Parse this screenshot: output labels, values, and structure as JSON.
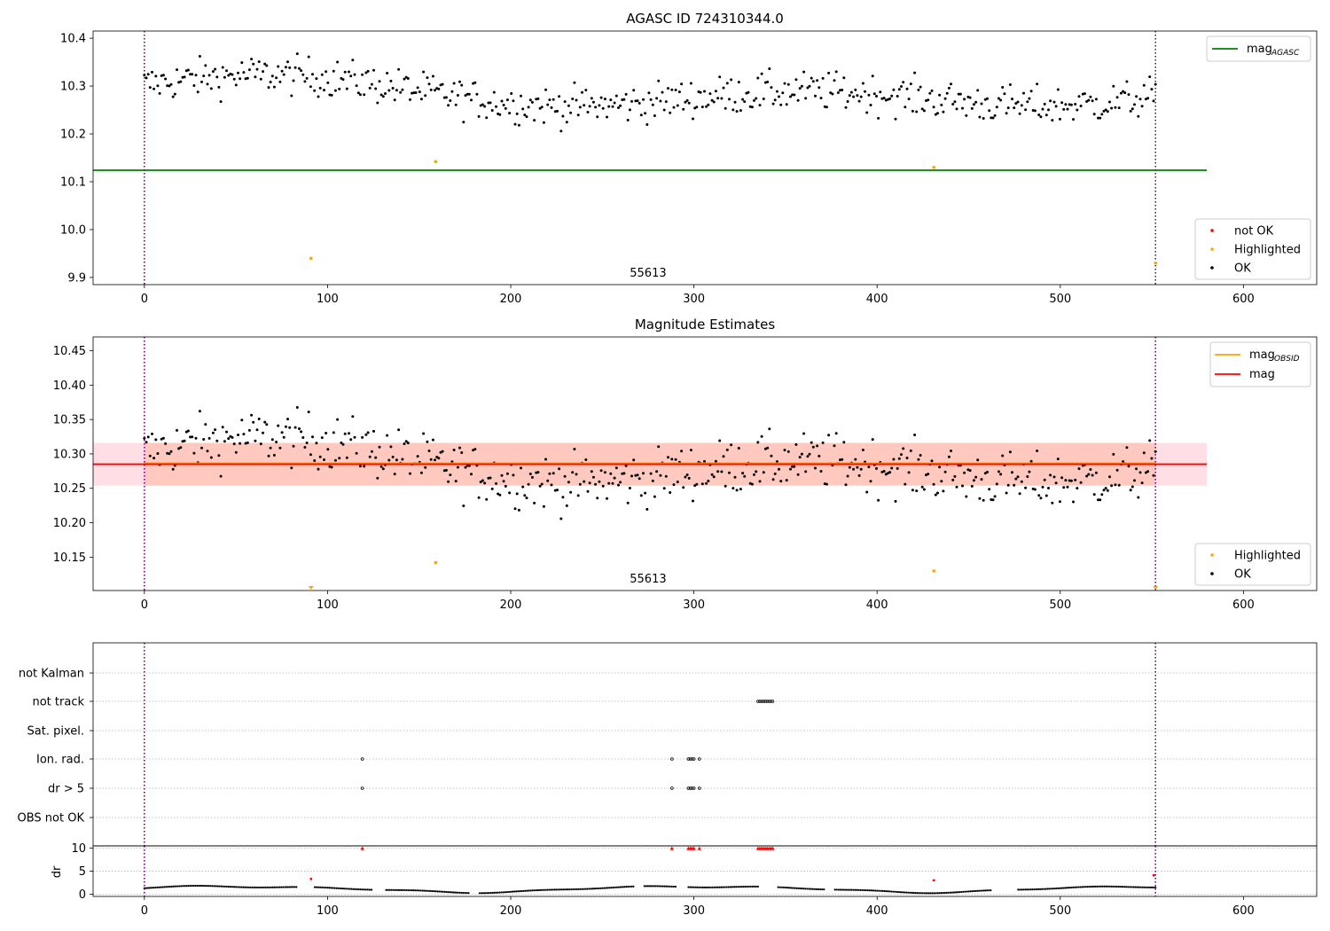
{
  "chart_data": [
    {
      "type": "scatter",
      "title": "AGASC ID 724310344.0",
      "xlim": [
        -28,
        640
      ],
      "ylim": [
        9.885,
        10.415
      ],
      "xticks": [
        0,
        100,
        200,
        300,
        400,
        500,
        600
      ],
      "yticks": [
        9.9,
        10.0,
        10.1,
        10.2,
        10.3,
        10.4
      ],
      "ytick_labels": [
        "9.9",
        "10.0",
        "10.1",
        "10.2",
        "10.3",
        "10.4"
      ],
      "obsid_label": "55613",
      "obsid_label_x": 275,
      "obsid_boundaries": [
        0,
        552
      ],
      "lines": [
        {
          "name": "mag_AGASC",
          "legend_main": "mag",
          "legend_sub": "AGASC",
          "y": 10.124,
          "x": [
            -28,
            580
          ],
          "color": "#008000"
        }
      ],
      "series": [
        {
          "name": "not OK",
          "color": "#ff0000",
          "points": []
        },
        {
          "name": "Highlighted",
          "color": "#ffa500",
          "points": [
            [
              91,
              9.94
            ],
            [
              159,
              10.142
            ],
            [
              431,
              10.13
            ],
            [
              552,
              9.93
            ]
          ]
        },
        {
          "name": "OK",
          "color": "#000000",
          "mean": 10.285,
          "amplitude": 0.04,
          "noise": 0.02,
          "x_range": [
            0,
            552
          ],
          "n": 530
        }
      ],
      "legend_top": [
        "mag_AGASC"
      ],
      "legend_bottom": [
        "not OK",
        "Highlighted",
        "OK"
      ]
    },
    {
      "type": "scatter",
      "title": "Magnitude Estimates",
      "xlim": [
        -28,
        640
      ],
      "ylim": [
        10.1015,
        10.47
      ],
      "xticks": [
        0,
        100,
        200,
        300,
        400,
        500,
        600
      ],
      "yticks": [
        10.15,
        10.2,
        10.25,
        10.3,
        10.35,
        10.4,
        10.45
      ],
      "ytick_labels": [
        "10.15",
        "10.20",
        "10.25",
        "10.30",
        "10.35",
        "10.40",
        "10.45"
      ],
      "obsid_label": "55613",
      "obsid_label_x": 275,
      "obsid_boundaries": [
        0,
        552
      ],
      "bands": [
        {
          "name": "mag range",
          "y": [
            10.254,
            10.316
          ],
          "x": [
            -28,
            580
          ],
          "color": "#ffc0cb"
        },
        {
          "name": "mag_OBSID range",
          "y": [
            10.254,
            10.316
          ],
          "x": [
            0,
            552
          ],
          "color": "#ffa07a"
        }
      ],
      "lines": [
        {
          "name": "mag_OBSID",
          "legend_main": "mag",
          "legend_sub": "OBSID",
          "y": 10.285,
          "x": [
            0,
            552
          ],
          "color": "#ffa500"
        },
        {
          "name": "mag",
          "legend_main": "mag",
          "legend_sub": "",
          "y": 10.285,
          "x": [
            -28,
            580
          ],
          "color": "#ff0000"
        }
      ],
      "series": [
        {
          "name": "Highlighted",
          "color": "#ffa500",
          "points": [
            [
              159,
              10.142
            ],
            [
              431,
              10.13
            ]
          ],
          "clipped_low": [
            91,
            552
          ]
        },
        {
          "name": "OK",
          "color": "#000000",
          "mean": 10.285,
          "amplitude": 0.04,
          "noise": 0.02,
          "x_range": [
            0,
            552
          ],
          "n": 530
        }
      ],
      "legend_top": [
        "mag_OBSID",
        "mag"
      ],
      "legend_bottom": [
        "Highlighted",
        "OK"
      ]
    },
    {
      "type": "scatter",
      "title": "",
      "xlim": [
        -28,
        640
      ],
      "categories": [
        "not Kalman",
        "not track",
        "Sat. pixel.",
        "Ion. rad.",
        "dr > 5",
        "OBS not OK"
      ],
      "obsid_boundaries": [
        0,
        552
      ],
      "flags": {
        "not Kalman": [],
        "not track": [
          335,
          336,
          337,
          338,
          339,
          340,
          341,
          342,
          343
        ],
        "Sat. pixel.": [],
        "Ion. rad.": [
          119,
          288,
          297,
          298,
          299,
          300,
          303
        ],
        "dr > 5": [
          119,
          288,
          297,
          298,
          299,
          300,
          303
        ],
        "OBS not OK": []
      }
    },
    {
      "type": "scatter",
      "title": "",
      "ylabel": "dr",
      "xlim": [
        -28,
        640
      ],
      "ylim": [
        -0.5,
        10.5
      ],
      "xticks": [
        0,
        100,
        200,
        300,
        400,
        500,
        600
      ],
      "yticks": [
        0,
        5,
        10
      ],
      "ytick_labels": [
        "0",
        "5",
        "10"
      ],
      "obsid_boundaries": [
        0,
        552
      ],
      "dr_gaps": [
        [
          84,
          92
        ],
        [
          125,
          131
        ],
        [
          178,
          182
        ],
        [
          268,
          272
        ],
        [
          291,
          296
        ],
        [
          336,
          345
        ],
        [
          372,
          376
        ],
        [
          463,
          476
        ]
      ],
      "red_points": [
        [
          91,
          3.3
        ],
        [
          431,
          3.0
        ],
        [
          551,
          4.1
        ]
      ],
      "capped_red": [
        119,
        288,
        297,
        298,
        299,
        300,
        303,
        335,
        336,
        337,
        338,
        339,
        340,
        341,
        342,
        343
      ]
    }
  ]
}
